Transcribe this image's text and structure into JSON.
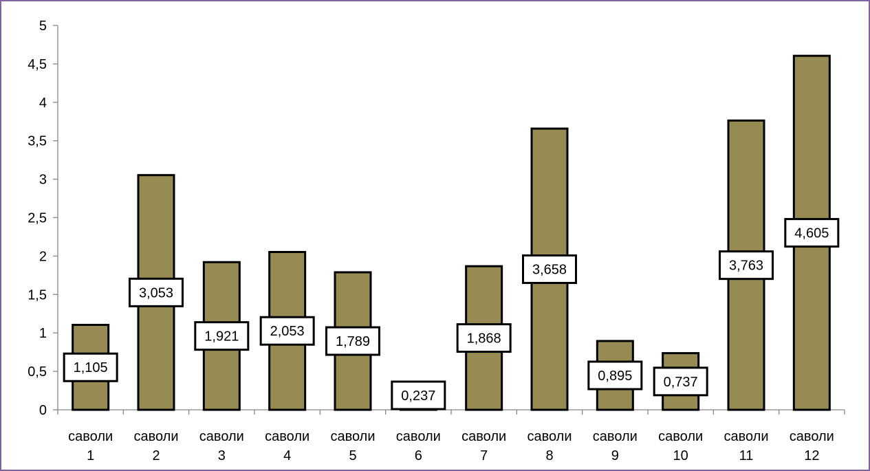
{
  "chart_data": {
    "type": "bar",
    "categories": [
      [
        "саволи",
        "1"
      ],
      [
        "саволи",
        "2"
      ],
      [
        "саволи",
        "3"
      ],
      [
        "саволи",
        "4"
      ],
      [
        "саволи",
        "5"
      ],
      [
        "саволи",
        "6"
      ],
      [
        "саволи",
        "7"
      ],
      [
        "саволи",
        "8"
      ],
      [
        "саволи",
        "9"
      ],
      [
        "саволи",
        "10"
      ],
      [
        "саволи",
        "11"
      ],
      [
        "саволи",
        "12"
      ]
    ],
    "values": [
      1.105,
      3.053,
      1.921,
      2.053,
      1.789,
      0.237,
      1.868,
      3.658,
      0.895,
      0.737,
      3.763,
      4.605
    ],
    "data_labels": [
      "1,105",
      "3,053",
      "1,921",
      "2,053",
      "1,789",
      "0,237",
      "1,868",
      "3,658",
      "0,895",
      "0,737",
      "3,763",
      "4,605"
    ],
    "y_ticks": [
      0,
      0.5,
      1,
      1.5,
      2,
      2.5,
      3,
      3.5,
      4,
      4.5,
      5
    ],
    "y_tick_labels": [
      "0",
      "0,5",
      "1",
      "1,5",
      "2",
      "2,5",
      "3",
      "3,5",
      "4",
      "4,5",
      "5"
    ],
    "ylim": [
      0,
      5
    ],
    "grid": false,
    "legend": "none",
    "colors": {
      "bar_fill": "#958b53",
      "bar_stroke": "#000000",
      "frame": "#8064a2"
    }
  }
}
